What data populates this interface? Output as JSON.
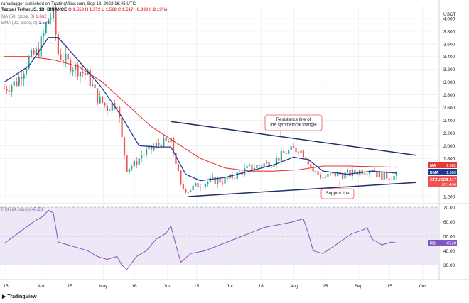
{
  "header": {
    "author_line": "ranadagger published on TradingView.com, Sep 18, 2022 16:45 UTC",
    "symbol_line": "Tezos / TetherUS, 1D, BINANCE",
    "ohlc": "O 1.550  H 1.572  L 1.510  C 1.517  −0.033 (−2.13%)",
    "ma_line_label": "MA (50, close, 0)",
    "ma_line_value": "1.662",
    "ema_line_label": "EMA (20, close, 0)",
    "ema_line_value": "1.569",
    "rsi_label": "RSI (14, close)",
    "rsi_value": "45.28"
  },
  "footer": {
    "brand": "TradingView"
  },
  "colors": {
    "up_candle": "#26a69a",
    "down_candle": "#ef5350",
    "ma50": "#e53935",
    "ema20": "#1f3a93",
    "trendline": "#1f2f6b",
    "rsi_line": "#7e57c2",
    "rsi_band": "#ede7f6",
    "grid": "#eef0f3"
  },
  "chart_data": {
    "type": "candlestick",
    "currency_label": "USDT",
    "y_ticks": [
      "4.000",
      "3.800",
      "3.600",
      "3.400",
      "3.200",
      "3.000",
      "2.800",
      "2.600",
      "2.400",
      "2.200",
      "2.000",
      "1.800",
      "1.200"
    ],
    "ylim": [
      1.1,
      4.2
    ],
    "x_ticks": [
      "15",
      "Apr",
      "15",
      "May",
      "16",
      "Jun",
      "15",
      "Jul",
      "18",
      "Aug",
      "15",
      "Sep",
      "15",
      "Oct"
    ],
    "price_badges": [
      {
        "label": "MA",
        "value": "1.662",
        "color": "#e53935"
      },
      {
        "label": "EMA",
        "value": "1.569",
        "color": "#1f3a93"
      },
      {
        "label": "XTZUSDT",
        "value": "1.517",
        "sub": "07:14:04",
        "color": "#ef5350"
      }
    ],
    "annotations": [
      {
        "text": [
          "Resistance line of",
          "the symmetrical triangle"
        ]
      },
      {
        "text": [
          "Support line"
        ]
      }
    ],
    "resistance_line": [
      {
        "day": 68,
        "price": 2.38
      },
      {
        "day": 185,
        "price": 1.85
      }
    ],
    "support_line": [
      {
        "day": 75,
        "price": 1.2
      },
      {
        "day": 185,
        "price": 1.42
      }
    ],
    "ohlc_days": 184,
    "price_path": [
      [
        0,
        2.9
      ],
      [
        5,
        3.0
      ],
      [
        10,
        3.35
      ],
      [
        14,
        3.5
      ],
      [
        18,
        4.0
      ],
      [
        20,
        4.05
      ],
      [
        22,
        3.45
      ],
      [
        26,
        3.3
      ],
      [
        30,
        3.2
      ],
      [
        34,
        3.1
      ],
      [
        38,
        2.75
      ],
      [
        42,
        2.6
      ],
      [
        46,
        2.7
      ],
      [
        48,
        2.1
      ],
      [
        50,
        1.65
      ],
      [
        53,
        1.7
      ],
      [
        56,
        1.85
      ],
      [
        60,
        1.95
      ],
      [
        64,
        2.05
      ],
      [
        68,
        2.05
      ],
      [
        70,
        1.75
      ],
      [
        72,
        1.35
      ],
      [
        75,
        1.3
      ],
      [
        80,
        1.4
      ],
      [
        85,
        1.45
      ],
      [
        90,
        1.45
      ],
      [
        95,
        1.55
      ],
      [
        100,
        1.65
      ],
      [
        105,
        1.7
      ],
      [
        110,
        1.75
      ],
      [
        115,
        1.9
      ],
      [
        120,
        1.95
      ],
      [
        123,
        1.85
      ],
      [
        126,
        1.6
      ],
      [
        130,
        1.5
      ],
      [
        135,
        1.55
      ],
      [
        140,
        1.55
      ],
      [
        145,
        1.6
      ],
      [
        150,
        1.65
      ],
      [
        152,
        1.55
      ],
      [
        156,
        1.52
      ],
      [
        160,
        1.517
      ]
    ],
    "ma50_path": [
      [
        0,
        3.4
      ],
      [
        10,
        3.4
      ],
      [
        20,
        3.35
      ],
      [
        30,
        3.25
      ],
      [
        40,
        3.0
      ],
      [
        50,
        2.65
      ],
      [
        60,
        2.3
      ],
      [
        70,
        2.05
      ],
      [
        80,
        1.8
      ],
      [
        90,
        1.65
      ],
      [
        100,
        1.6
      ],
      [
        110,
        1.6
      ],
      [
        120,
        1.62
      ],
      [
        130,
        1.68
      ],
      [
        140,
        1.68
      ],
      [
        150,
        1.67
      ],
      [
        160,
        1.662
      ]
    ],
    "ema20_path": [
      [
        0,
        3.0
      ],
      [
        10,
        3.25
      ],
      [
        18,
        3.7
      ],
      [
        22,
        3.7
      ],
      [
        30,
        3.35
      ],
      [
        40,
        2.9
      ],
      [
        48,
        2.45
      ],
      [
        55,
        2.0
      ],
      [
        62,
        1.98
      ],
      [
        68,
        1.98
      ],
      [
        74,
        1.55
      ],
      [
        80,
        1.45
      ],
      [
        90,
        1.5
      ],
      [
        100,
        1.6
      ],
      [
        110,
        1.7
      ],
      [
        118,
        1.82
      ],
      [
        124,
        1.78
      ],
      [
        130,
        1.6
      ],
      [
        140,
        1.55
      ],
      [
        150,
        1.6
      ],
      [
        160,
        1.569
      ]
    ],
    "rsi": {
      "y_ticks": [
        "70.00",
        "60.00",
        "50.00",
        "40.00",
        "30.00"
      ],
      "ylim": [
        22,
        72
      ],
      "band": [
        30,
        70
      ],
      "current": "45.28",
      "path": [
        [
          0,
          45
        ],
        [
          4,
          50
        ],
        [
          8,
          55
        ],
        [
          12,
          60
        ],
        [
          16,
          64
        ],
        [
          18,
          68
        ],
        [
          20,
          66
        ],
        [
          22,
          46
        ],
        [
          26,
          44
        ],
        [
          30,
          42
        ],
        [
          34,
          40
        ],
        [
          38,
          36
        ],
        [
          42,
          34
        ],
        [
          46,
          36
        ],
        [
          48,
          30
        ],
        [
          50,
          27
        ],
        [
          54,
          36
        ],
        [
          58,
          40
        ],
        [
          62,
          48
        ],
        [
          66,
          52
        ],
        [
          68,
          57
        ],
        [
          70,
          44
        ],
        [
          72,
          32
        ],
        [
          76,
          38
        ],
        [
          82,
          40
        ],
        [
          88,
          44
        ],
        [
          94,
          48
        ],
        [
          100,
          52
        ],
        [
          106,
          56
        ],
        [
          112,
          58
        ],
        [
          118,
          60
        ],
        [
          122,
          62
        ],
        [
          124,
          52
        ],
        [
          126,
          40
        ],
        [
          130,
          38
        ],
        [
          136,
          45
        ],
        [
          142,
          52
        ],
        [
          146,
          54
        ],
        [
          148,
          56
        ],
        [
          150,
          48
        ],
        [
          154,
          44
        ],
        [
          158,
          46
        ],
        [
          160,
          45.28
        ]
      ]
    }
  }
}
